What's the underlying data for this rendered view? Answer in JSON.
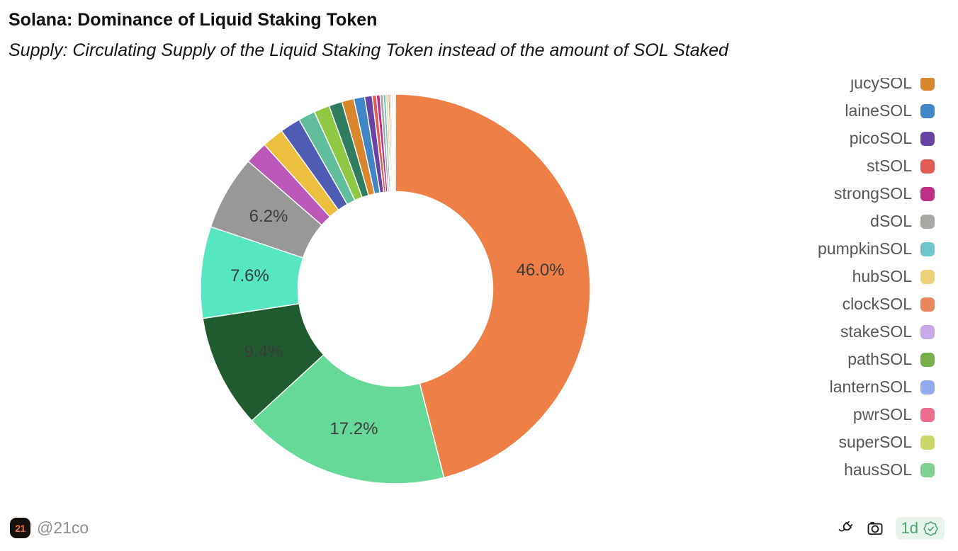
{
  "header": {
    "title": "Solana: Dominance of Liquid Staking Token",
    "subtitle": "Supply: Circulating Supply of the Liquid Staking Token instead of the amount of SOL Staked"
  },
  "chart_data": {
    "type": "pie",
    "subtype": "donut",
    "title": "Solana: Dominance of Liquid Staking Token",
    "inner_radius_ratio": 0.5,
    "start_angle_deg": 0,
    "direction": "clockwise",
    "legend_position": "right",
    "legend_clipped_at_top": true,
    "note": "Only the five largest slices carry on-chart percentage labels; values of unlabeled slices are estimated from arc angles.",
    "label_color": "#3b3b3b",
    "slices": [
      {
        "label": null,
        "pct_label": "46.0%",
        "value": 46.0,
        "color": "#ED7F47"
      },
      {
        "label": null,
        "pct_label": "17.2%",
        "value": 17.2,
        "color": "#66D998"
      },
      {
        "label": null,
        "pct_label": "9.4%",
        "value": 9.4,
        "color": "#1F5B2F"
      },
      {
        "label": null,
        "pct_label": "7.6%",
        "value": 7.6,
        "color": "#56E6C1"
      },
      {
        "label": null,
        "pct_label": "6.2%",
        "value": 6.2,
        "color": "#989898"
      },
      {
        "label": null,
        "value": 1.9,
        "color": "#BC58B8"
      },
      {
        "label": null,
        "value": 1.8,
        "color": "#ECBF3E"
      },
      {
        "label": null,
        "value": 1.7,
        "color": "#4F5CB4"
      },
      {
        "label": null,
        "value": 1.4,
        "color": "#61BD9B"
      },
      {
        "label": null,
        "value": 1.3,
        "color": "#8FC843"
      },
      {
        "label": null,
        "value": 1.1,
        "color": "#2F7C5E"
      },
      {
        "label": "jucySOL",
        "value": 1.0,
        "color": "#D9862C"
      },
      {
        "label": "laineSOL",
        "value": 0.9,
        "color": "#4186C6"
      },
      {
        "label": "picoSOL",
        "value": 0.62,
        "color": "#6843A3"
      },
      {
        "label": "stSOL",
        "value": 0.35,
        "color": "#E15C55"
      },
      {
        "label": "strongSOL",
        "value": 0.3,
        "color": "#BE2F87"
      },
      {
        "label": "dSOL",
        "value": 0.26,
        "color": "#A7AAA2"
      },
      {
        "label": "pumpkinSOL",
        "value": 0.22,
        "color": "#70C5C8"
      },
      {
        "label": "hubSOL",
        "value": 0.18,
        "color": "#EFD17C"
      },
      {
        "label": "clockSOL",
        "value": 0.15,
        "color": "#E8875E"
      },
      {
        "label": "stakeSOL",
        "value": 0.12,
        "color": "#CAA9E9"
      },
      {
        "label": "pathSOL",
        "value": 0.1,
        "color": "#78AE4B"
      },
      {
        "label": "lanternSOL",
        "value": 0.08,
        "color": "#92ABEF"
      },
      {
        "label": "pwrSOL",
        "value": 0.06,
        "color": "#ED6D90"
      },
      {
        "label": "superSOL",
        "value": 0.05,
        "color": "#CBD66A"
      },
      {
        "label": "hausSOL",
        "value": 0.04,
        "color": "#81D091"
      }
    ]
  },
  "legend": {
    "items": [
      {
        "label": "jucySOL",
        "color": "#D9862C"
      },
      {
        "label": "laineSOL",
        "color": "#4186C6"
      },
      {
        "label": "picoSOL",
        "color": "#6843A3"
      },
      {
        "label": "stSOL",
        "color": "#E15C55"
      },
      {
        "label": "strongSOL",
        "color": "#BE2F87"
      },
      {
        "label": "dSOL",
        "color": "#A7AAA2"
      },
      {
        "label": "pumpkinSOL",
        "color": "#70C5C8"
      },
      {
        "label": "hubSOL",
        "color": "#EFD17C"
      },
      {
        "label": "clockSOL",
        "color": "#E8875E"
      },
      {
        "label": "stakeSOL",
        "color": "#CAA9E9"
      },
      {
        "label": "pathSOL",
        "color": "#78AE4B"
      },
      {
        "label": "lanternSOL",
        "color": "#92ABEF"
      },
      {
        "label": "pwrSOL",
        "color": "#ED6D90"
      },
      {
        "label": "superSOL",
        "color": "#CBD66A"
      },
      {
        "label": "hausSOL",
        "color": "#81D091"
      }
    ]
  },
  "footer": {
    "brand": {
      "logo_text": "21",
      "handle": "@21co",
      "logo_bg": "#17110d",
      "logo_text_color": "#e8703a"
    },
    "refresh_badge": {
      "text": "1d",
      "text_color": "#4AA36E",
      "bg": "#E7F3EB"
    }
  }
}
